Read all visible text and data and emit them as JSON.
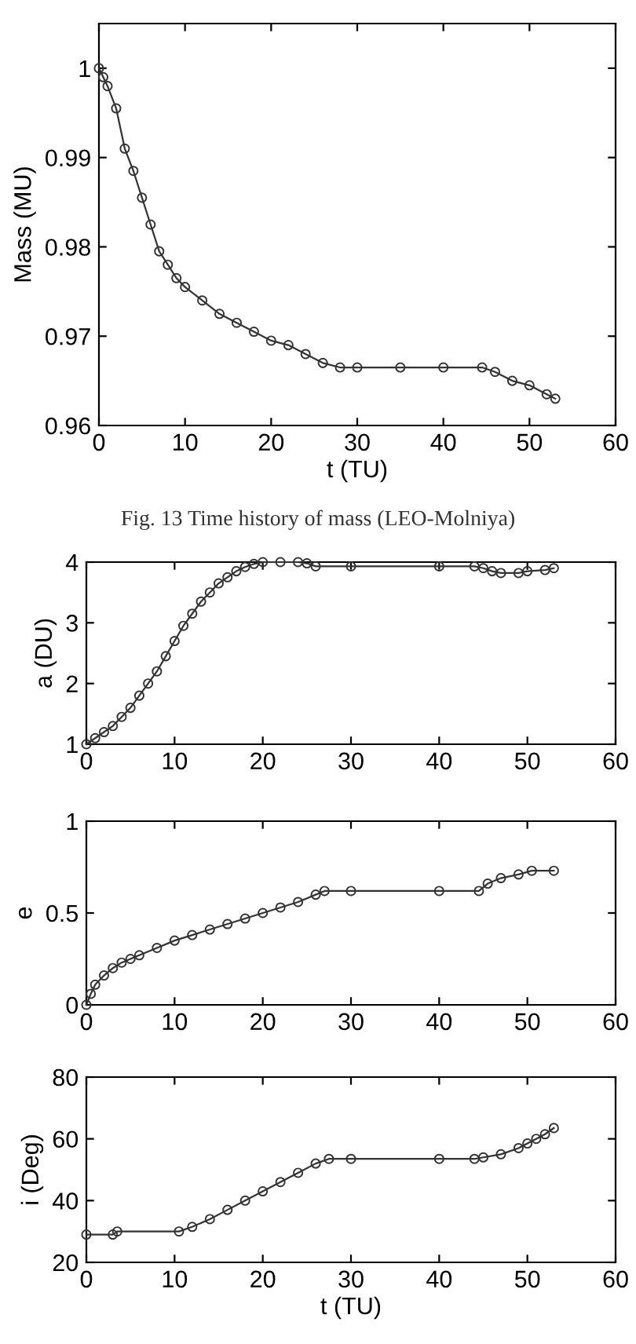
{
  "chart_data": [
    {
      "type": "line",
      "marker": "circle",
      "xlabel": "t (TU)",
      "ylabel": "Mass (MU)",
      "annotations": [
        "Fig. 13 Time history of mass (LEO-Molniya)"
      ],
      "xlim": [
        0,
        60
      ],
      "xticks": [
        0,
        10,
        20,
        30,
        40,
        50,
        60
      ],
      "ylim": [
        0.96,
        1.005
      ],
      "yticks": [
        0.96,
        0.97,
        0.98,
        0.99,
        1
      ],
      "grid": false,
      "x": [
        0,
        0.5,
        1,
        2,
        3,
        4,
        5,
        6,
        7,
        8,
        9,
        10,
        12,
        14,
        16,
        18,
        20,
        22,
        24,
        26,
        28,
        30,
        35,
        40,
        44.5,
        46,
        48,
        50,
        52,
        53
      ],
      "series": [
        {
          "color": "#333333",
          "values": [
            1.0,
            0.999,
            0.998,
            0.9955,
            0.991,
            0.9885,
            0.9855,
            0.9825,
            0.9795,
            0.978,
            0.9765,
            0.9755,
            0.974,
            0.9725,
            0.9715,
            0.9705,
            0.9695,
            0.969,
            0.968,
            0.967,
            0.9665,
            0.9665,
            0.9665,
            0.9665,
            0.9665,
            0.966,
            0.965,
            0.9645,
            0.9635,
            0.963
          ]
        }
      ]
    },
    {
      "type": "line",
      "marker": "circle",
      "ylabel": "a (DU)",
      "xlim": [
        0,
        60
      ],
      "xticks": [
        0,
        10,
        20,
        30,
        40,
        50,
        60
      ],
      "ylim": [
        1,
        4
      ],
      "yticks": [
        1,
        2,
        3,
        4
      ],
      "grid": false,
      "x": [
        0,
        1,
        2,
        3,
        4,
        5,
        6,
        7,
        8,
        9,
        10,
        11,
        12,
        13,
        14,
        15,
        16,
        17,
        18,
        19,
        20,
        22,
        24,
        25,
        26,
        30,
        40,
        44,
        45,
        46,
        47,
        49,
        50,
        52,
        53
      ],
      "series": [
        {
          "color": "#333333",
          "values": [
            1.0,
            1.1,
            1.2,
            1.3,
            1.45,
            1.6,
            1.8,
            2.0,
            2.2,
            2.45,
            2.7,
            2.95,
            3.15,
            3.35,
            3.5,
            3.65,
            3.75,
            3.85,
            3.92,
            3.97,
            4.0,
            4.0,
            4.0,
            3.98,
            3.93,
            3.93,
            3.93,
            3.93,
            3.9,
            3.85,
            3.82,
            3.82,
            3.85,
            3.87,
            3.9
          ]
        }
      ]
    },
    {
      "type": "line",
      "marker": "circle",
      "ylabel": "e",
      "xlim": [
        0,
        60
      ],
      "xticks": [
        0,
        10,
        20,
        30,
        40,
        50,
        60
      ],
      "ylim": [
        0,
        1
      ],
      "yticks": [
        0,
        0.5,
        1
      ],
      "grid": false,
      "x": [
        0,
        0.5,
        1,
        2,
        3,
        4,
        5,
        6,
        8,
        10,
        12,
        14,
        16,
        18,
        20,
        22,
        24,
        26,
        27,
        30,
        40,
        44.5,
        45.5,
        47,
        49,
        50.5,
        53
      ],
      "series": [
        {
          "color": "#333333",
          "values": [
            0,
            0.06,
            0.11,
            0.16,
            0.2,
            0.23,
            0.25,
            0.27,
            0.31,
            0.35,
            0.38,
            0.41,
            0.44,
            0.47,
            0.5,
            0.53,
            0.56,
            0.6,
            0.62,
            0.62,
            0.62,
            0.62,
            0.66,
            0.69,
            0.71,
            0.73,
            0.73
          ]
        }
      ]
    },
    {
      "type": "line",
      "marker": "circle",
      "xlabel": "t (TU)",
      "ylabel": "i (Deg)",
      "xlim": [
        0,
        60
      ],
      "xticks": [
        0,
        10,
        20,
        30,
        40,
        50,
        60
      ],
      "ylim": [
        20,
        80
      ],
      "yticks": [
        20,
        40,
        60,
        80
      ],
      "grid": false,
      "x": [
        0,
        3,
        3.5,
        10.5,
        12,
        14,
        16,
        18,
        20,
        22,
        24,
        26,
        27.5,
        30,
        40,
        44,
        45,
        47,
        49,
        50,
        51,
        52,
        53
      ],
      "series": [
        {
          "color": "#333333",
          "values": [
            29,
            29,
            30,
            30,
            31.5,
            34,
            37,
            40,
            43,
            46,
            49,
            52,
            53.5,
            53.5,
            53.5,
            53.5,
            54,
            55,
            57,
            58.5,
            60,
            61.5,
            63.5
          ]
        }
      ]
    }
  ]
}
